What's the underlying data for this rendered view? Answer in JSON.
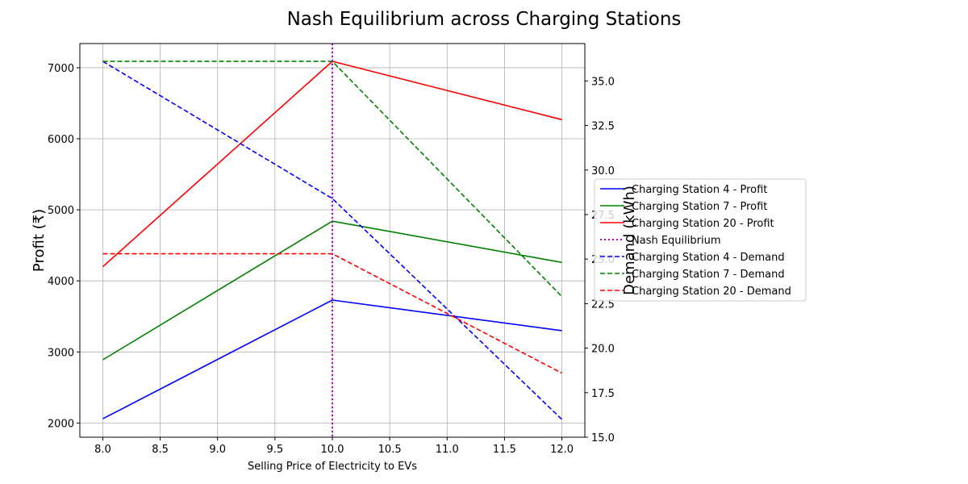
{
  "chart_data": {
    "type": "line",
    "title": "Nash Equilibrium across Charging Stations",
    "xlabel": "Selling Price of Electricity to EVs",
    "ylabel": "Profit (₹)",
    "y2label": "Demand (kWh)",
    "grid": true,
    "legend_position": "outside-right",
    "xlim": [
      7.8,
      12.2
    ],
    "ylim": [
      1800,
      7340
    ],
    "y2lim": [
      15.0,
      37.1
    ],
    "x": [
      8,
      10,
      12
    ],
    "xticks": [
      8.0,
      8.5,
      9.0,
      9.5,
      10.0,
      10.5,
      11.0,
      11.5,
      12.0
    ],
    "xtick_labels": [
      "8.0",
      "8.5",
      "9.0",
      "9.5",
      "10.0",
      "10.5",
      "11.0",
      "11.5",
      "12.0"
    ],
    "yticks": [
      2000,
      3000,
      4000,
      5000,
      6000,
      7000
    ],
    "ytick_labels": [
      "2000",
      "3000",
      "4000",
      "5000",
      "6000",
      "7000"
    ],
    "y2ticks": [
      15.0,
      17.5,
      20.0,
      22.5,
      25.0,
      27.5,
      30.0,
      32.5,
      35.0
    ],
    "y2tick_labels": [
      "15.0",
      "17.5",
      "20.0",
      "22.5",
      "25.0",
      "27.5",
      "30.0",
      "32.5",
      "35.0"
    ],
    "series": [
      {
        "name": "Charging Station 4 - Profit",
        "axis": "left",
        "style": "solid",
        "color": "#0000ff",
        "values": [
          2060,
          3730,
          3300
        ]
      },
      {
        "name": "Charging Station 7 - Profit",
        "axis": "left",
        "style": "solid",
        "color": "#008000",
        "values": [
          2890,
          4840,
          4260
        ]
      },
      {
        "name": "Charging Station 20 - Profit",
        "axis": "left",
        "style": "solid",
        "color": "#ff0000",
        "values": [
          4200,
          7090,
          6270
        ]
      },
      {
        "name": "Charging Station 4 - Demand",
        "axis": "right",
        "style": "dashed",
        "color": "#0000ff",
        "values": [
          36.1,
          28.4,
          16.0
        ]
      },
      {
        "name": "Charging Station 7 - Demand",
        "axis": "right",
        "style": "dashed",
        "color": "#008000",
        "values": [
          36.1,
          36.1,
          22.9
        ]
      },
      {
        "name": "Charging Station 20 - Demand",
        "axis": "right",
        "style": "dashed",
        "color": "#ff0000",
        "values": [
          25.3,
          25.3,
          18.6
        ]
      }
    ],
    "equilibrium": {
      "name": "Nash Equilibrium",
      "x": 10.0,
      "color": "#bf00bf",
      "style": "dotted"
    },
    "legend": [
      "Charging Station 4 - Profit",
      "Charging Station 7 - Profit",
      "Charging Station 20 - Profit",
      "Nash Equilibrium",
      "Charging Station 4 - Demand",
      "Charging Station 7 - Demand",
      "Charging Station 20 - Demand"
    ]
  }
}
